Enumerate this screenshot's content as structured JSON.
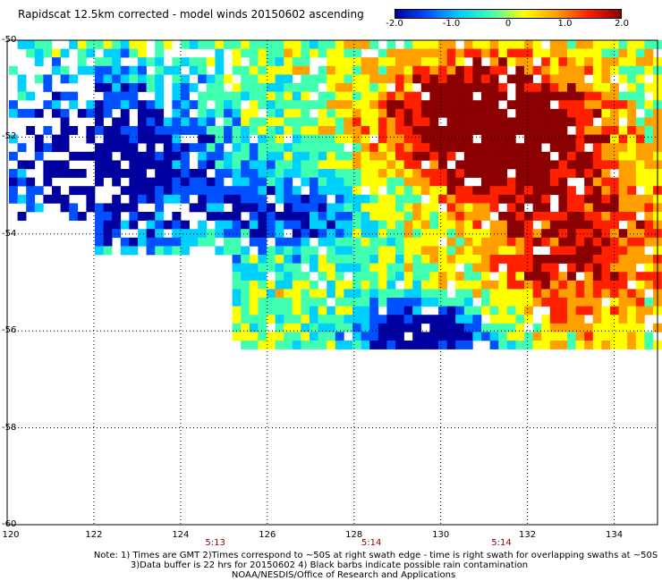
{
  "title": "Rapidscat 12.5km corrected - model winds 20150602 ascending",
  "colorbar": {
    "labels": [
      "-2.0",
      "-1.0",
      "0",
      "1.0",
      "2.0"
    ],
    "values": [
      -2.0,
      -1.0,
      0,
      1.0,
      2.0
    ],
    "colors": [
      "#0000a0",
      "#0050ff",
      "#00d0ff",
      "#40ffb0",
      "#ffff00",
      "#ffa000",
      "#ff2000",
      "#8b0000"
    ]
  },
  "map": {
    "lon_labels": [
      "120",
      "122",
      "124",
      "126",
      "128",
      "130",
      "132",
      "134"
    ],
    "lat_labels": [
      "-50",
      "-52",
      "-54",
      "-56",
      "-58",
      "-60"
    ],
    "time_labels": [
      {
        "text": "5:13",
        "lon": 124.8
      },
      {
        "text": "5:14",
        "lon": 128.4
      },
      {
        "text": "5:14",
        "lon": 131.4
      }
    ]
  },
  "notes": [
    "Note: 1) Times are GMT 2)Times correspond to ~50S at right swath edge - time is right swath for overlapping swaths at ~50S",
    "3)Data buffer is 22 hrs for 20150602 4) Black barbs indicate possible rain contamination",
    "NOAA/NESDIS/Office of Research and Applications"
  ]
}
